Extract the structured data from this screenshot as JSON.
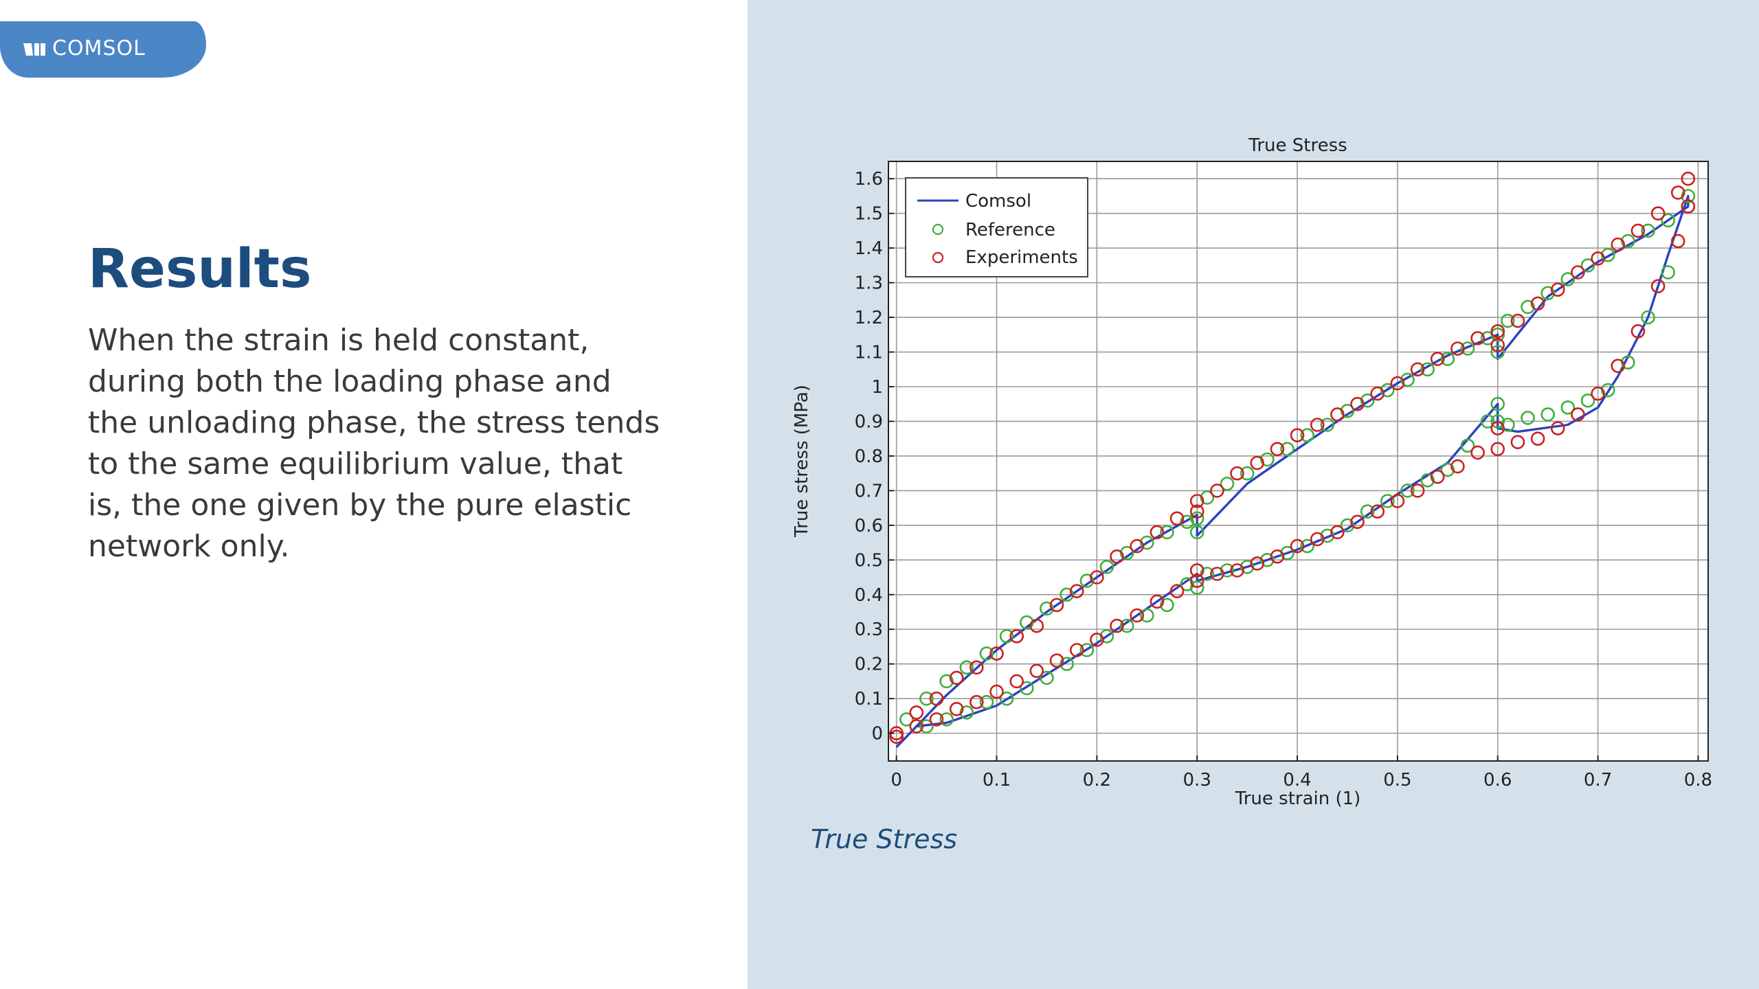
{
  "brand": {
    "logo_text": "COMSOL",
    "brand_color": "#4b86c6"
  },
  "slide": {
    "title": "Results",
    "body": "When the strain is held constant, during both the loading phase and the unloading phase, the stress tends to the same equilibrium value, that is, the one given by the pure elastic network only.",
    "caption": "True Stress"
  },
  "colors": {
    "panel": "#d5e1ea",
    "title": "#1d4c7e",
    "comsol": "#2a43c2",
    "reference": "#3fae3f",
    "experiments": "#cc2020"
  },
  "chart_data": {
    "type": "line",
    "title": "True Stress",
    "xlabel": "True strain (1)",
    "ylabel": "True stress (MPa)",
    "xlim": [
      -0.008,
      0.81
    ],
    "ylim": [
      -0.08,
      1.65
    ],
    "xticks": [
      0,
      0.1,
      0.2,
      0.3,
      0.4,
      0.5,
      0.6,
      0.7,
      0.8
    ],
    "xtick_labels": [
      "0",
      "0.1",
      "0.2",
      "0.3",
      "0.4",
      "0.5",
      "0.6",
      "0.7",
      "0.8"
    ],
    "yticks": [
      0,
      0.1,
      0.2,
      0.3,
      0.4,
      0.5,
      0.6,
      0.7,
      0.8,
      0.9,
      1,
      1.1,
      1.2,
      1.3,
      1.4,
      1.5,
      1.6
    ],
    "ytick_labels": [
      "0",
      "0.1",
      "0.2",
      "0.3",
      "0.4",
      "0.5",
      "0.6",
      "0.7",
      "0.8",
      "0.9",
      "1",
      "1.1",
      "1.2",
      "1.3",
      "1.4",
      "1.5",
      "1.6"
    ],
    "grid": true,
    "legend_position": "top-left",
    "series": [
      {
        "name": "Comsol",
        "style": "line",
        "color": "#2a43c2",
        "x": [
          0,
          0.05,
          0.1,
          0.15,
          0.2,
          0.25,
          0.3,
          0.3,
          0.3,
          0.35,
          0.4,
          0.45,
          0.5,
          0.55,
          0.6,
          0.6,
          0.6,
          0.65,
          0.7,
          0.75,
          0.79,
          0.79,
          0.77,
          0.75,
          0.72,
          0.7,
          0.67,
          0.62,
          0.6,
          0.6,
          0.6,
          0.55,
          0.5,
          0.45,
          0.4,
          0.35,
          0.3,
          0.3,
          0.3,
          0.25,
          0.2,
          0.15,
          0.1,
          0.05,
          0.02
        ],
        "y": [
          -0.04,
          0.11,
          0.24,
          0.35,
          0.45,
          0.55,
          0.63,
          0.6,
          0.57,
          0.72,
          0.82,
          0.92,
          1.01,
          1.09,
          1.15,
          1.1,
          1.08,
          1.26,
          1.36,
          1.44,
          1.52,
          1.55,
          1.38,
          1.2,
          1.03,
          0.94,
          0.89,
          0.87,
          0.88,
          0.92,
          0.95,
          0.78,
          0.69,
          0.59,
          0.53,
          0.48,
          0.44,
          0.45,
          0.46,
          0.36,
          0.26,
          0.17,
          0.08,
          0.03,
          0.02
        ]
      },
      {
        "name": "Reference",
        "style": "markers",
        "color": "#3fae3f",
        "x": [
          0.01,
          0.03,
          0.05,
          0.07,
          0.09,
          0.11,
          0.13,
          0.15,
          0.17,
          0.19,
          0.21,
          0.23,
          0.25,
          0.27,
          0.29,
          0.3,
          0.3,
          0.31,
          0.33,
          0.35,
          0.37,
          0.39,
          0.41,
          0.43,
          0.45,
          0.47,
          0.49,
          0.51,
          0.53,
          0.55,
          0.57,
          0.59,
          0.6,
          0.6,
          0.61,
          0.63,
          0.65,
          0.67,
          0.69,
          0.71,
          0.73,
          0.75,
          0.77,
          0.79,
          0.79,
          0.77,
          0.75,
          0.73,
          0.71,
          0.69,
          0.67,
          0.65,
          0.63,
          0.61,
          0.6,
          0.6,
          0.59,
          0.57,
          0.55,
          0.53,
          0.51,
          0.49,
          0.47,
          0.45,
          0.43,
          0.41,
          0.39,
          0.37,
          0.35,
          0.33,
          0.31,
          0.3,
          0.3,
          0.29,
          0.27,
          0.25,
          0.23,
          0.21,
          0.19,
          0.17,
          0.15,
          0.13,
          0.11,
          0.09,
          0.07,
          0.05,
          0.03
        ],
        "y": [
          0.04,
          0.1,
          0.15,
          0.19,
          0.23,
          0.28,
          0.32,
          0.36,
          0.4,
          0.44,
          0.48,
          0.52,
          0.55,
          0.58,
          0.61,
          0.58,
          0.62,
          0.68,
          0.72,
          0.75,
          0.79,
          0.82,
          0.86,
          0.89,
          0.93,
          0.96,
          0.99,
          1.02,
          1.05,
          1.08,
          1.11,
          1.14,
          1.1,
          1.15,
          1.19,
          1.23,
          1.27,
          1.31,
          1.35,
          1.38,
          1.42,
          1.45,
          1.48,
          1.52,
          1.55,
          1.33,
          1.2,
          1.07,
          0.99,
          0.96,
          0.94,
          0.92,
          0.91,
          0.89,
          0.95,
          0.9,
          0.9,
          0.83,
          0.76,
          0.73,
          0.7,
          0.67,
          0.64,
          0.6,
          0.57,
          0.54,
          0.52,
          0.5,
          0.48,
          0.47,
          0.46,
          0.42,
          0.47,
          0.43,
          0.37,
          0.34,
          0.31,
          0.28,
          0.24,
          0.2,
          0.16,
          0.13,
          0.1,
          0.09,
          0.06,
          0.04,
          0.02
        ]
      },
      {
        "name": "Experiments",
        "style": "markers",
        "color": "#cc2020",
        "x": [
          0,
          0.02,
          0.04,
          0.06,
          0.08,
          0.1,
          0.12,
          0.14,
          0.16,
          0.18,
          0.2,
          0.22,
          0.24,
          0.26,
          0.28,
          0.3,
          0.3,
          0.32,
          0.34,
          0.36,
          0.38,
          0.4,
          0.42,
          0.44,
          0.46,
          0.48,
          0.5,
          0.52,
          0.54,
          0.56,
          0.58,
          0.6,
          0.6,
          0.62,
          0.64,
          0.66,
          0.68,
          0.7,
          0.72,
          0.74,
          0.76,
          0.78,
          0.79,
          0.79,
          0.78,
          0.76,
          0.74,
          0.72,
          0.7,
          0.68,
          0.66,
          0.64,
          0.62,
          0.6,
          0.6,
          0.58,
          0.56,
          0.54,
          0.52,
          0.5,
          0.48,
          0.46,
          0.44,
          0.42,
          0.4,
          0.38,
          0.36,
          0.34,
          0.32,
          0.3,
          0.3,
          0.28,
          0.26,
          0.24,
          0.22,
          0.2,
          0.18,
          0.16,
          0.14,
          0.12,
          0.1,
          0.08,
          0.06,
          0.04,
          0.02,
          0
        ],
        "y": [
          0,
          0.06,
          0.1,
          0.16,
          0.19,
          0.23,
          0.28,
          0.31,
          0.37,
          0.41,
          0.45,
          0.51,
          0.54,
          0.58,
          0.62,
          0.67,
          0.64,
          0.7,
          0.75,
          0.78,
          0.82,
          0.86,
          0.89,
          0.92,
          0.95,
          0.98,
          1.01,
          1.05,
          1.08,
          1.11,
          1.14,
          1.16,
          1.12,
          1.19,
          1.24,
          1.28,
          1.33,
          1.37,
          1.41,
          1.45,
          1.5,
          1.56,
          1.6,
          1.52,
          1.42,
          1.29,
          1.16,
          1.06,
          0.98,
          0.92,
          0.88,
          0.85,
          0.84,
          0.82,
          0.88,
          0.81,
          0.77,
          0.74,
          0.7,
          0.67,
          0.64,
          0.61,
          0.58,
          0.56,
          0.54,
          0.51,
          0.49,
          0.47,
          0.46,
          0.44,
          0.47,
          0.41,
          0.38,
          0.34,
          0.31,
          0.27,
          0.24,
          0.21,
          0.18,
          0.15,
          0.12,
          0.09,
          0.07,
          0.04,
          0.02,
          -0.01
        ]
      }
    ]
  }
}
